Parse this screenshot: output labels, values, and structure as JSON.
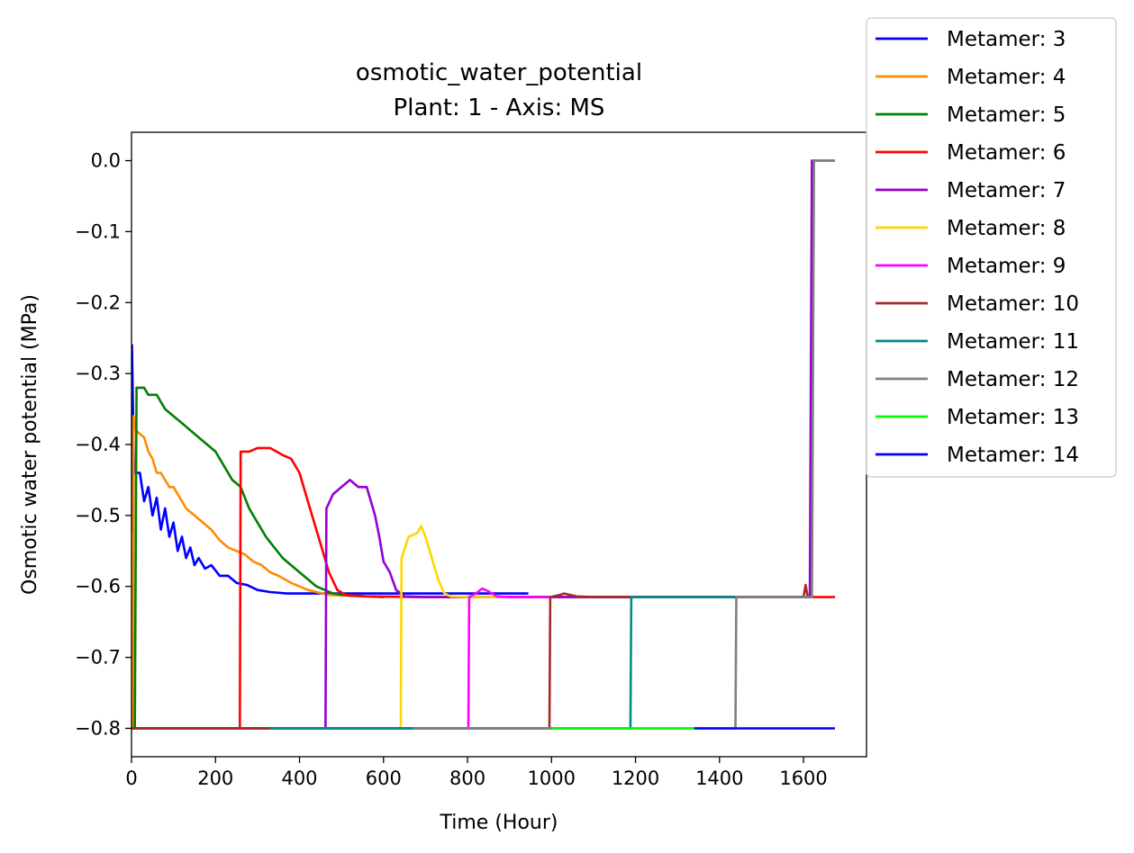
{
  "chart_data": {
    "type": "line",
    "title": "osmotic_water_potential",
    "subtitle": "Plant: 1 - Axis: MS",
    "xlabel": "Time (Hour)",
    "ylabel": "Osmotic water potential (MPa)",
    "xlim": [
      0,
      1750
    ],
    "ylim": [
      -0.84,
      0.04
    ],
    "xticks": [
      0,
      200,
      400,
      600,
      800,
      1000,
      1200,
      1400,
      1600
    ],
    "yticks": [
      0.0,
      -0.1,
      -0.2,
      -0.3,
      -0.4,
      -0.5,
      -0.6,
      -0.7,
      -0.8
    ],
    "xtick_labels": [
      "0",
      "200",
      "400",
      "600",
      "800",
      "1000",
      "1200",
      "1400",
      "1600"
    ],
    "ytick_labels": [
      "0.0",
      "−0.1",
      "−0.2",
      "−0.3",
      "−0.4",
      "−0.5",
      "−0.6",
      "−0.7",
      "−0.8"
    ],
    "grid": false,
    "legend_position": "outside-top-right",
    "series": [
      {
        "name": "Metamer: 3",
        "color": "#0000ff",
        "points": [
          [
            0,
            -0.525
          ],
          [
            1,
            -0.26
          ],
          [
            6,
            -0.44
          ],
          [
            20,
            -0.44
          ],
          [
            30,
            -0.48
          ],
          [
            40,
            -0.46
          ],
          [
            50,
            -0.5
          ],
          [
            60,
            -0.475
          ],
          [
            70,
            -0.52
          ],
          [
            80,
            -0.49
          ],
          [
            90,
            -0.53
          ],
          [
            100,
            -0.51
          ],
          [
            110,
            -0.55
          ],
          [
            120,
            -0.53
          ],
          [
            130,
            -0.56
          ],
          [
            140,
            -0.545
          ],
          [
            150,
            -0.57
          ],
          [
            160,
            -0.56
          ],
          [
            175,
            -0.575
          ],
          [
            190,
            -0.57
          ],
          [
            210,
            -0.585
          ],
          [
            230,
            -0.585
          ],
          [
            250,
            -0.595
          ],
          [
            275,
            -0.598
          ],
          [
            300,
            -0.605
          ],
          [
            330,
            -0.608
          ],
          [
            370,
            -0.61
          ],
          [
            450,
            -0.61
          ],
          [
            600,
            -0.61
          ],
          [
            800,
            -0.61
          ],
          [
            945,
            -0.61
          ]
        ]
      },
      {
        "name": "Metamer: 4",
        "color": "#ff8c00",
        "points": [
          [
            0,
            -0.8
          ],
          [
            3,
            -0.8
          ],
          [
            5,
            -0.36
          ],
          [
            10,
            -0.38
          ],
          [
            30,
            -0.39
          ],
          [
            40,
            -0.41
          ],
          [
            50,
            -0.42
          ],
          [
            60,
            -0.44
          ],
          [
            70,
            -0.44
          ],
          [
            80,
            -0.45
          ],
          [
            90,
            -0.46
          ],
          [
            100,
            -0.46
          ],
          [
            110,
            -0.47
          ],
          [
            120,
            -0.48
          ],
          [
            130,
            -0.49
          ],
          [
            150,
            -0.5
          ],
          [
            170,
            -0.51
          ],
          [
            190,
            -0.52
          ],
          [
            210,
            -0.535
          ],
          [
            230,
            -0.545
          ],
          [
            250,
            -0.55
          ],
          [
            270,
            -0.555
          ],
          [
            290,
            -0.565
          ],
          [
            310,
            -0.57
          ],
          [
            330,
            -0.58
          ],
          [
            350,
            -0.585
          ],
          [
            380,
            -0.595
          ],
          [
            420,
            -0.605
          ],
          [
            470,
            -0.612
          ],
          [
            550,
            -0.614
          ],
          [
            700,
            -0.615
          ],
          [
            860,
            -0.615
          ]
        ]
      },
      {
        "name": "Metamer: 5",
        "color": "#008000",
        "points": [
          [
            0,
            -0.8
          ],
          [
            8,
            -0.8
          ],
          [
            12,
            -0.32
          ],
          [
            30,
            -0.32
          ],
          [
            40,
            -0.33
          ],
          [
            60,
            -0.33
          ],
          [
            80,
            -0.35
          ],
          [
            100,
            -0.36
          ],
          [
            120,
            -0.37
          ],
          [
            140,
            -0.38
          ],
          [
            160,
            -0.39
          ],
          [
            180,
            -0.4
          ],
          [
            200,
            -0.41
          ],
          [
            220,
            -0.43
          ],
          [
            240,
            -0.45
          ],
          [
            260,
            -0.46
          ],
          [
            280,
            -0.49
          ],
          [
            300,
            -0.51
          ],
          [
            320,
            -0.53
          ],
          [
            340,
            -0.545
          ],
          [
            360,
            -0.56
          ],
          [
            380,
            -0.57
          ],
          [
            400,
            -0.58
          ],
          [
            420,
            -0.59
          ],
          [
            440,
            -0.6
          ],
          [
            460,
            -0.605
          ],
          [
            480,
            -0.61
          ],
          [
            520,
            -0.613
          ],
          [
            600,
            -0.615
          ]
        ]
      },
      {
        "name": "Metamer: 6",
        "color": "#ff0000",
        "points": [
          [
            0,
            -0.8
          ],
          [
            258,
            -0.8
          ],
          [
            260,
            -0.41
          ],
          [
            280,
            -0.41
          ],
          [
            300,
            -0.405
          ],
          [
            330,
            -0.405
          ],
          [
            360,
            -0.415
          ],
          [
            380,
            -0.42
          ],
          [
            400,
            -0.44
          ],
          [
            420,
            -0.48
          ],
          [
            440,
            -0.52
          ],
          [
            455,
            -0.55
          ],
          [
            470,
            -0.58
          ],
          [
            490,
            -0.605
          ],
          [
            510,
            -0.612
          ],
          [
            560,
            -0.614
          ],
          [
            700,
            -0.615
          ],
          [
            1000,
            -0.615
          ],
          [
            1600,
            -0.615
          ],
          [
            1675,
            -0.615
          ]
        ]
      },
      {
        "name": "Metamer: 7",
        "color": "#9400d3",
        "points": [
          [
            0,
            -0.8
          ],
          [
            462,
            -0.8
          ],
          [
            464,
            -0.49
          ],
          [
            480,
            -0.47
          ],
          [
            500,
            -0.46
          ],
          [
            520,
            -0.45
          ],
          [
            540,
            -0.46
          ],
          [
            560,
            -0.46
          ],
          [
            580,
            -0.5
          ],
          [
            590,
            -0.53
          ],
          [
            600,
            -0.565
          ],
          [
            615,
            -0.58
          ],
          [
            630,
            -0.605
          ],
          [
            650,
            -0.614
          ],
          [
            700,
            -0.615
          ],
          [
            1000,
            -0.615
          ],
          [
            1600,
            -0.615
          ],
          [
            1615,
            -0.615
          ],
          [
            1620,
            0.0
          ],
          [
            1675,
            0.0
          ]
        ]
      },
      {
        "name": "Metamer: 8",
        "color": "#ffd700",
        "points": [
          [
            0,
            -0.8
          ],
          [
            641,
            -0.8
          ],
          [
            643,
            -0.56
          ],
          [
            660,
            -0.53
          ],
          [
            680,
            -0.525
          ],
          [
            690,
            -0.515
          ],
          [
            700,
            -0.53
          ],
          [
            710,
            -0.55
          ],
          [
            720,
            -0.57
          ],
          [
            730,
            -0.59
          ],
          [
            745,
            -0.61
          ],
          [
            760,
            -0.614
          ],
          [
            800,
            -0.615
          ],
          [
            900,
            -0.615
          ]
        ]
      },
      {
        "name": "Metamer: 9",
        "color": "#ff00ff",
        "points": [
          [
            0,
            -0.8
          ],
          [
            802,
            -0.8
          ],
          [
            804,
            -0.615
          ],
          [
            820,
            -0.61
          ],
          [
            835,
            -0.603
          ],
          [
            850,
            -0.607
          ],
          [
            870,
            -0.614
          ],
          [
            900,
            -0.615
          ],
          [
            1000,
            -0.615
          ]
        ]
      },
      {
        "name": "Metamer: 10",
        "color": "#a52a2a",
        "points": [
          [
            0,
            -0.8
          ],
          [
            995,
            -0.8
          ],
          [
            997,
            -0.615
          ],
          [
            1020,
            -0.612
          ],
          [
            1030,
            -0.61
          ],
          [
            1060,
            -0.614
          ],
          [
            1100,
            -0.615
          ],
          [
            1600,
            -0.615
          ],
          [
            1605,
            -0.598
          ],
          [
            1610,
            -0.615
          ],
          [
            1615,
            -0.615
          ]
        ]
      },
      {
        "name": "Metamer: 11",
        "color": "#008b8b",
        "points": [
          [
            0,
            -0.8
          ],
          [
            1188,
            -0.8
          ],
          [
            1190,
            -0.615
          ],
          [
            1300,
            -0.615
          ],
          [
            1440,
            -0.615
          ]
        ]
      },
      {
        "name": "Metamer: 12",
        "color": "#808080",
        "points": [
          [
            0,
            -0.8
          ],
          [
            1438,
            -0.8
          ],
          [
            1440,
            -0.615
          ],
          [
            1500,
            -0.615
          ],
          [
            1610,
            -0.615
          ],
          [
            1620,
            -0.615
          ],
          [
            1625,
            0.0
          ],
          [
            1675,
            0.0
          ]
        ]
      },
      {
        "name": "Metamer: 13",
        "color": "#00ff00",
        "points": [
          [
            1000,
            -0.8
          ],
          [
            1345,
            -0.8
          ]
        ]
      },
      {
        "name": "Metamer: 14",
        "color": "#0000ff",
        "points": [
          [
            1340,
            -0.8
          ],
          [
            1675,
            -0.8
          ]
        ]
      }
    ],
    "floor_segments": [
      {
        "color": "#a52a2a",
        "x": [
          0,
          330
        ]
      },
      {
        "color": "#008b8b",
        "x": [
          330,
          670
        ]
      },
      {
        "color": "#808080",
        "x": [
          670,
          1000
        ]
      }
    ]
  }
}
